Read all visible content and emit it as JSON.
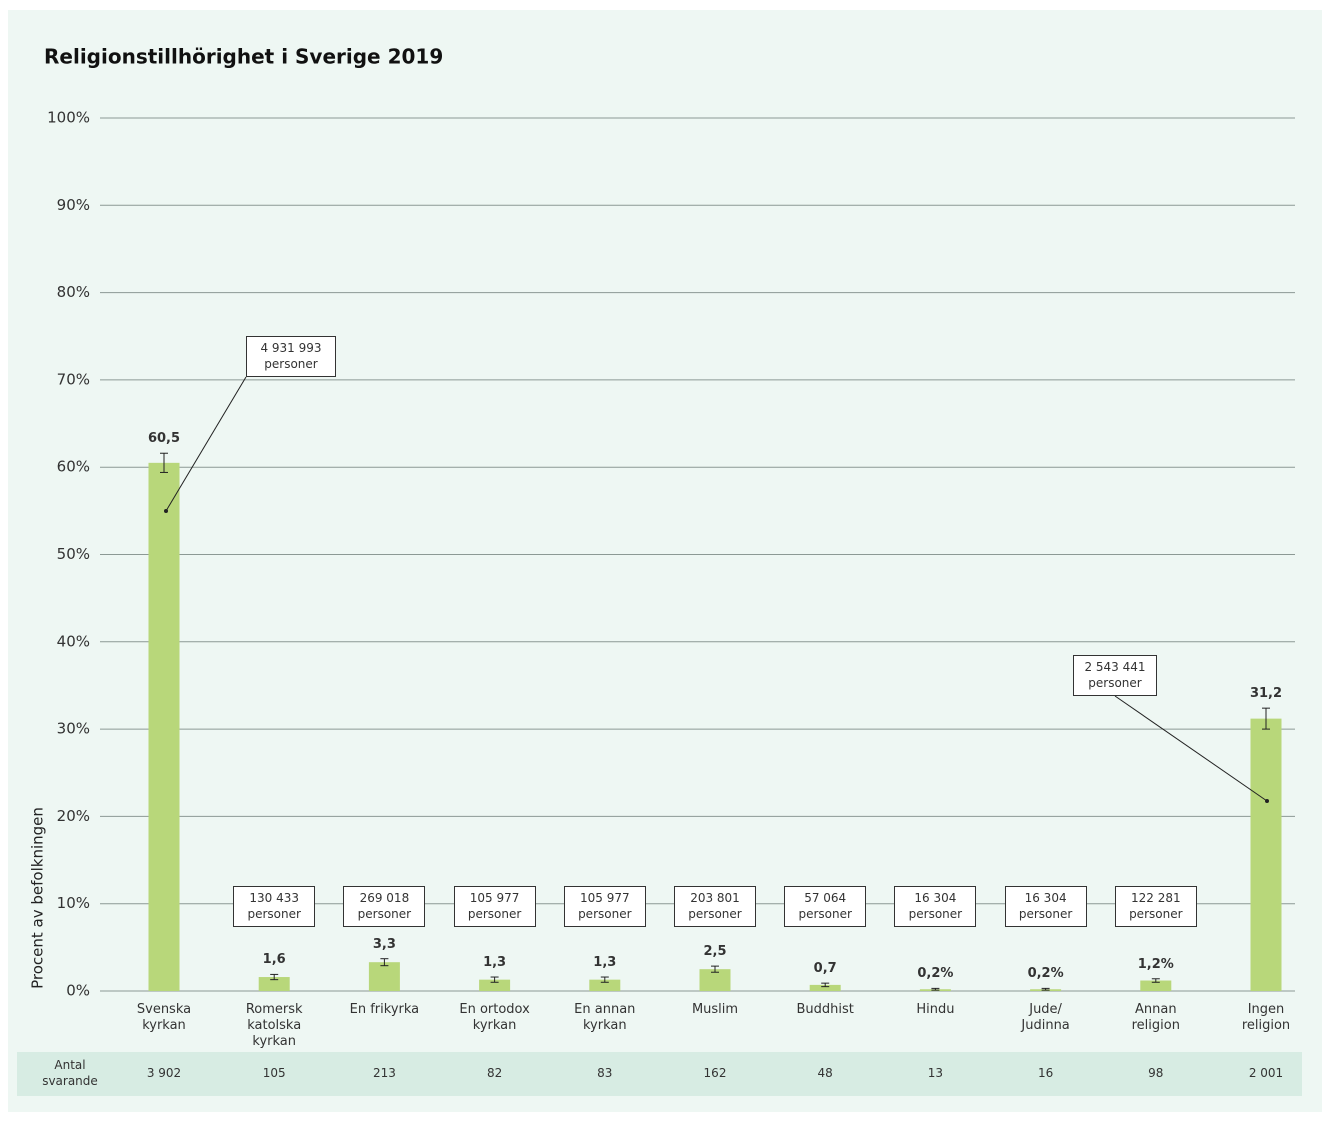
{
  "chart_data": {
    "type": "bar",
    "title": "Religionstillhörighet i Sverige 2019",
    "y_label": "Procent av befolkningen",
    "categories": [
      "Svenska\nkyrkan",
      "Romersk\nkatolska\nkyrkan",
      "En frikyrka",
      "En ortodox\nkyrkan",
      "En annan\nkyrkan",
      "Muslim",
      "Buddhist",
      "Hindu",
      "Jude/\nJudinna",
      "Annan\nreligion",
      "Ingen\nreligion"
    ],
    "values": [
      60.5,
      1.6,
      3.3,
      1.3,
      1.3,
      2.5,
      0.7,
      0.2,
      0.2,
      1.2,
      31.2
    ],
    "value_labels": [
      "60,5",
      "1,6",
      "3,3",
      "1,3",
      "1,3",
      "2,5",
      "0,7",
      "0,2%",
      "0,2%",
      "1,2%",
      "31,2"
    ],
    "errors": [
      1.1,
      0.3,
      0.4,
      0.3,
      0.3,
      0.35,
      0.2,
      0.1,
      0.1,
      0.2,
      1.2
    ],
    "population_labels": [
      "4 931 993\npersoner",
      "130 433\npersoner",
      "269 018\npersoner",
      "105 977\npersoner",
      "105 977\npersoner",
      "203 801\npersoner",
      "57 064\npersoner",
      "16 304\npersoner",
      "16 304\npersoner",
      "122 281\npersoner",
      "2 543 441\npersoner"
    ],
    "count_label": "Antal\nsvarande",
    "counts": [
      "3 902",
      "105",
      "213",
      "82",
      "83",
      "162",
      "48",
      "13",
      "16",
      "98",
      "2 001"
    ],
    "color": "#b8d77a",
    "ylim": [
      0,
      100
    ],
    "yticks": [
      {
        "value": 0,
        "label": "0%"
      },
      {
        "value": 10,
        "label": "10%"
      },
      {
        "value": 20,
        "label": "20%"
      },
      {
        "value": 30,
        "label": "30%"
      },
      {
        "value": 40,
        "label": "40%"
      },
      {
        "value": 50,
        "label": "50%"
      },
      {
        "value": 60,
        "label": "60%"
      },
      {
        "value": 70,
        "label": "70%"
      },
      {
        "value": 80,
        "label": "80%"
      },
      {
        "value": 90,
        "label": "90%"
      },
      {
        "value": 100,
        "label": "100%"
      }
    ],
    "grid": true
  }
}
